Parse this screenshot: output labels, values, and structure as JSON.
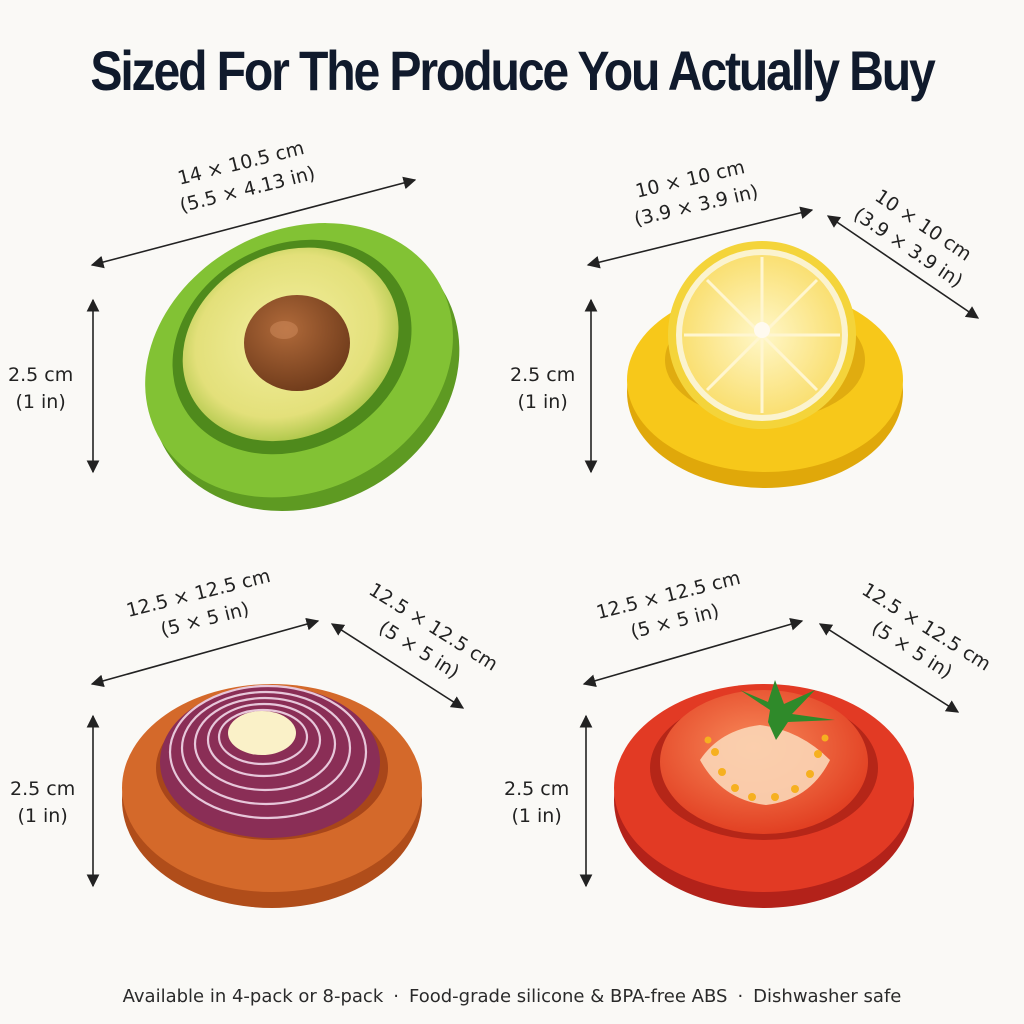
{
  "title": "Sized For The Produce You Actually Buy",
  "products": [
    {
      "name": "avocado",
      "color": "#7fbf35",
      "width_label": "14 × 10.5 cm",
      "width_label_in": "(5.5 × 4.13 in)",
      "height_label": "2.5 cm",
      "height_label_in": "(1 in)"
    },
    {
      "name": "lemon",
      "color": "#f6c816",
      "width_label": "10 × 10 cm",
      "width_label_in": "(3.9 × 3.9 in)",
      "depth_label": "10 × 10 cm",
      "depth_label_in": "(3.9 × 3.9 in)",
      "height_label": "2.5 cm",
      "height_label_in": "(1 in)"
    },
    {
      "name": "onion",
      "color": "#d4692a",
      "width_label": "12.5 × 12.5 cm",
      "width_label_in": "(5 × 5 in)",
      "depth_label": "12.5 × 12.5 cm",
      "depth_label_in": "(5 × 5 in)",
      "height_label": "2.5 cm",
      "height_label_in": "(1 in)"
    },
    {
      "name": "tomato",
      "color": "#e23a24",
      "width_label": "12.5 × 12.5 cm",
      "width_label_in": "(5 × 5 in)",
      "depth_label": "12.5 × 12.5 cm",
      "depth_label_in": "(5 × 5 in)",
      "height_label": "2.5 cm",
      "height_label_in": "(1 in)"
    }
  ],
  "footer": {
    "items": [
      "Available in 4-pack or 8-pack",
      "Food-grade silicone & BPA-free ABS",
      "Dishwasher safe"
    ],
    "separator": "·"
  }
}
